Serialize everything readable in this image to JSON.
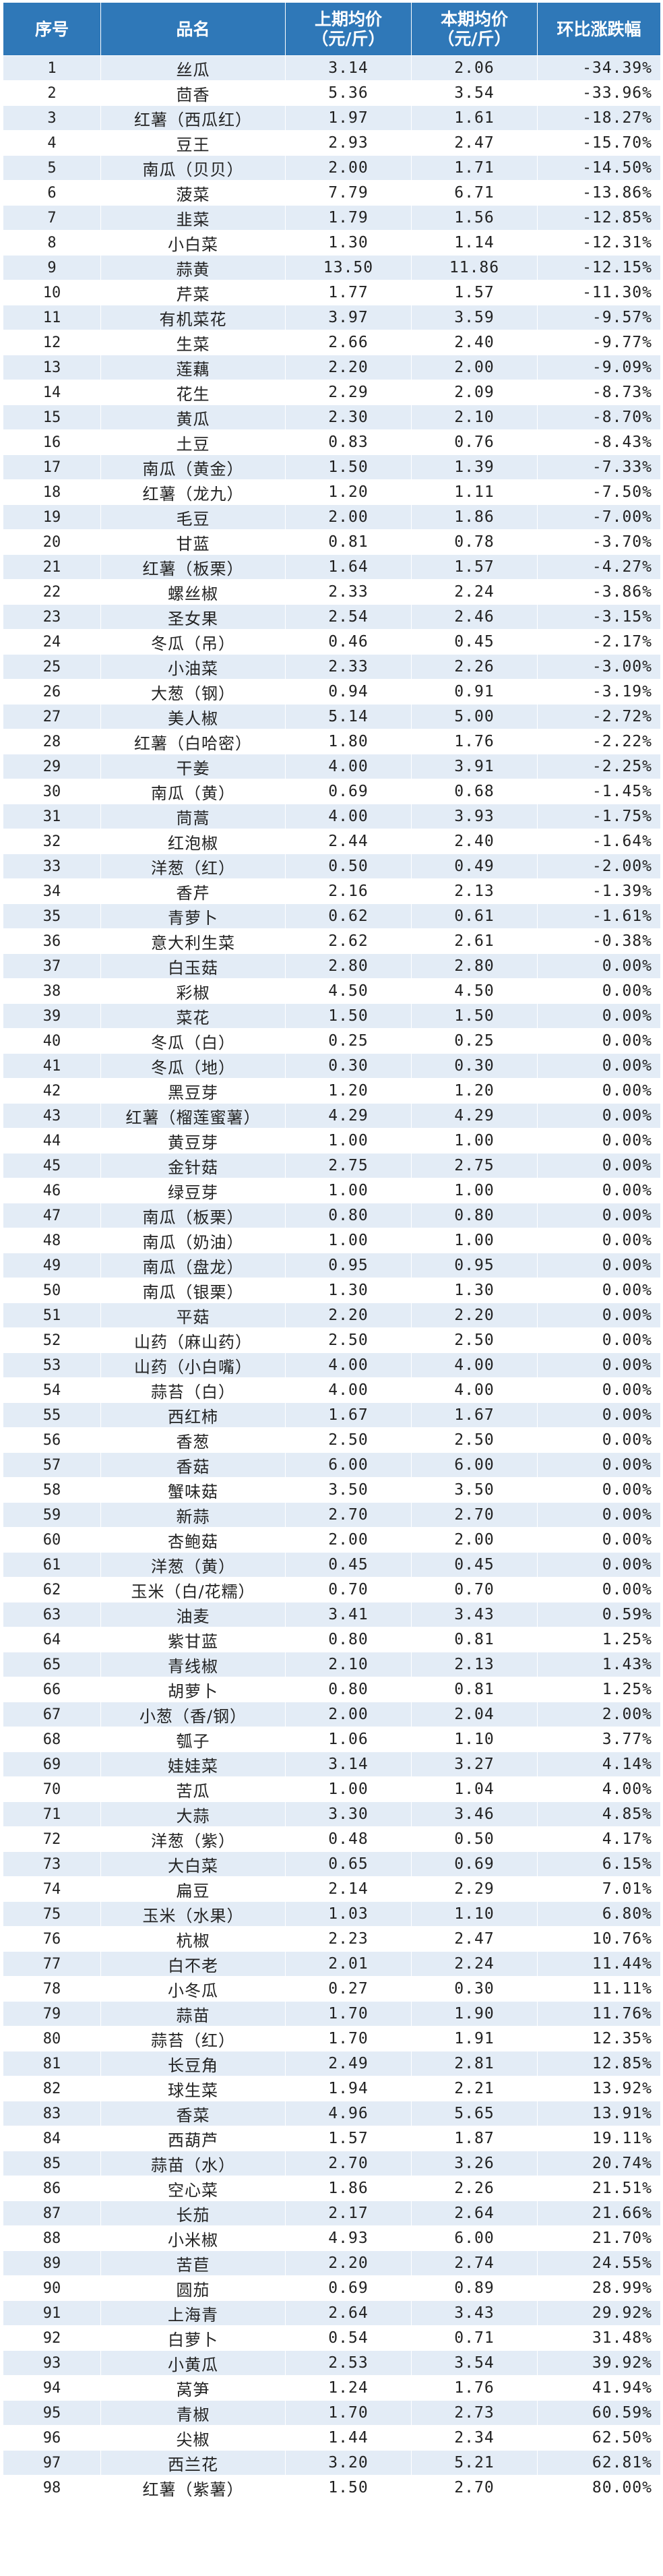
{
  "header": {
    "idx": "序号",
    "name": "品名",
    "prev": [
      "上期均价",
      "（元/斤）"
    ],
    "curr": [
      "本期均价",
      "（元/斤）"
    ],
    "change": "环比涨跌幅"
  },
  "rows": [
    [
      "1",
      "丝瓜",
      "3.14",
      "2.06",
      "-34.39%"
    ],
    [
      "2",
      "茴香",
      "5.36",
      "3.54",
      "-33.96%"
    ],
    [
      "3",
      "红薯（西瓜红）",
      "1.97",
      "1.61",
      "-18.27%"
    ],
    [
      "4",
      "豆王",
      "2.93",
      "2.47",
      "-15.70%"
    ],
    [
      "5",
      "南瓜（贝贝）",
      "2.00",
      "1.71",
      "-14.50%"
    ],
    [
      "6",
      "菠菜",
      "7.79",
      "6.71",
      "-13.86%"
    ],
    [
      "7",
      "韭菜",
      "1.79",
      "1.56",
      "-12.85%"
    ],
    [
      "8",
      "小白菜",
      "1.30",
      "1.14",
      "-12.31%"
    ],
    [
      "9",
      "蒜黄",
      "13.50",
      "11.86",
      "-12.15%"
    ],
    [
      "10",
      "芹菜",
      "1.77",
      "1.57",
      "-11.30%"
    ],
    [
      "11",
      "有机菜花",
      "3.97",
      "3.59",
      "-9.57%"
    ],
    [
      "12",
      "生菜",
      "2.66",
      "2.40",
      "-9.77%"
    ],
    [
      "13",
      "莲藕",
      "2.20",
      "2.00",
      "-9.09%"
    ],
    [
      "14",
      "花生",
      "2.29",
      "2.09",
      "-8.73%"
    ],
    [
      "15",
      "黄瓜",
      "2.30",
      "2.10",
      "-8.70%"
    ],
    [
      "16",
      "土豆",
      "0.83",
      "0.76",
      "-8.43%"
    ],
    [
      "17",
      "南瓜（黄金）",
      "1.50",
      "1.39",
      "-7.33%"
    ],
    [
      "18",
      "红薯（龙九）",
      "1.20",
      "1.11",
      "-7.50%"
    ],
    [
      "19",
      "毛豆",
      "2.00",
      "1.86",
      "-7.00%"
    ],
    [
      "20",
      "甘蓝",
      "0.81",
      "0.78",
      "-3.70%"
    ],
    [
      "21",
      "红薯（板栗）",
      "1.64",
      "1.57",
      "-4.27%"
    ],
    [
      "22",
      "螺丝椒",
      "2.33",
      "2.24",
      "-3.86%"
    ],
    [
      "23",
      "圣女果",
      "2.54",
      "2.46",
      "-3.15%"
    ],
    [
      "24",
      "冬瓜（吊）",
      "0.46",
      "0.45",
      "-2.17%"
    ],
    [
      "25",
      "小油菜",
      "2.33",
      "2.26",
      "-3.00%"
    ],
    [
      "26",
      "大葱（钢）",
      "0.94",
      "0.91",
      "-3.19%"
    ],
    [
      "27",
      "美人椒",
      "5.14",
      "5.00",
      "-2.72%"
    ],
    [
      "28",
      "红薯（白哈密）",
      "1.80",
      "1.76",
      "-2.22%"
    ],
    [
      "29",
      "干姜",
      "4.00",
      "3.91",
      "-2.25%"
    ],
    [
      "30",
      "南瓜（黄）",
      "0.69",
      "0.68",
      "-1.45%"
    ],
    [
      "31",
      "茼蒿",
      "4.00",
      "3.93",
      "-1.75%"
    ],
    [
      "32",
      "红泡椒",
      "2.44",
      "2.40",
      "-1.64%"
    ],
    [
      "33",
      "洋葱（红）",
      "0.50",
      "0.49",
      "-2.00%"
    ],
    [
      "34",
      "香芹",
      "2.16",
      "2.13",
      "-1.39%"
    ],
    [
      "35",
      "青萝卜",
      "0.62",
      "0.61",
      "-1.61%"
    ],
    [
      "36",
      "意大利生菜",
      "2.62",
      "2.61",
      "-0.38%"
    ],
    [
      "37",
      "白玉菇",
      "2.80",
      "2.80",
      "0.00%"
    ],
    [
      "38",
      "彩椒",
      "4.50",
      "4.50",
      "0.00%"
    ],
    [
      "39",
      "菜花",
      "1.50",
      "1.50",
      "0.00%"
    ],
    [
      "40",
      "冬瓜（白）",
      "0.25",
      "0.25",
      "0.00%"
    ],
    [
      "41",
      "冬瓜（地）",
      "0.30",
      "0.30",
      "0.00%"
    ],
    [
      "42",
      "黑豆芽",
      "1.20",
      "1.20",
      "0.00%"
    ],
    [
      "43",
      "红薯（榴莲蜜薯）",
      "4.29",
      "4.29",
      "0.00%"
    ],
    [
      "44",
      "黄豆芽",
      "1.00",
      "1.00",
      "0.00%"
    ],
    [
      "45",
      "金针菇",
      "2.75",
      "2.75",
      "0.00%"
    ],
    [
      "46",
      "绿豆芽",
      "1.00",
      "1.00",
      "0.00%"
    ],
    [
      "47",
      "南瓜（板栗）",
      "0.80",
      "0.80",
      "0.00%"
    ],
    [
      "48",
      "南瓜（奶油）",
      "1.00",
      "1.00",
      "0.00%"
    ],
    [
      "49",
      "南瓜（盘龙）",
      "0.95",
      "0.95",
      "0.00%"
    ],
    [
      "50",
      "南瓜（银栗）",
      "1.30",
      "1.30",
      "0.00%"
    ],
    [
      "51",
      "平菇",
      "2.20",
      "2.20",
      "0.00%"
    ],
    [
      "52",
      "山药（麻山药）",
      "2.50",
      "2.50",
      "0.00%"
    ],
    [
      "53",
      "山药（小白嘴）",
      "4.00",
      "4.00",
      "0.00%"
    ],
    [
      "54",
      "蒜苔（白）",
      "4.00",
      "4.00",
      "0.00%"
    ],
    [
      "55",
      "西红柿",
      "1.67",
      "1.67",
      "0.00%"
    ],
    [
      "56",
      "香葱",
      "2.50",
      "2.50",
      "0.00%"
    ],
    [
      "57",
      "香菇",
      "6.00",
      "6.00",
      "0.00%"
    ],
    [
      "58",
      "蟹味菇",
      "3.50",
      "3.50",
      "0.00%"
    ],
    [
      "59",
      "新蒜",
      "2.70",
      "2.70",
      "0.00%"
    ],
    [
      "60",
      "杏鲍菇",
      "2.00",
      "2.00",
      "0.00%"
    ],
    [
      "61",
      "洋葱（黄）",
      "0.45",
      "0.45",
      "0.00%"
    ],
    [
      "62",
      "玉米（白/花糯）",
      "0.70",
      "0.70",
      "0.00%"
    ],
    [
      "63",
      "油麦",
      "3.41",
      "3.43",
      "0.59%"
    ],
    [
      "64",
      "紫甘蓝",
      "0.80",
      "0.81",
      "1.25%"
    ],
    [
      "65",
      "青线椒",
      "2.10",
      "2.13",
      "1.43%"
    ],
    [
      "66",
      "胡萝卜",
      "0.80",
      "0.81",
      "1.25%"
    ],
    [
      "67",
      "小葱（香/钢）",
      "2.00",
      "2.04",
      "2.00%"
    ],
    [
      "68",
      "瓠子",
      "1.06",
      "1.10",
      "3.77%"
    ],
    [
      "69",
      "娃娃菜",
      "3.14",
      "3.27",
      "4.14%"
    ],
    [
      "70",
      "苦瓜",
      "1.00",
      "1.04",
      "4.00%"
    ],
    [
      "71",
      "大蒜",
      "3.30",
      "3.46",
      "4.85%"
    ],
    [
      "72",
      "洋葱（紫）",
      "0.48",
      "0.50",
      "4.17%"
    ],
    [
      "73",
      "大白菜",
      "0.65",
      "0.69",
      "6.15%"
    ],
    [
      "74",
      "扁豆",
      "2.14",
      "2.29",
      "7.01%"
    ],
    [
      "75",
      "玉米（水果）",
      "1.03",
      "1.10",
      "6.80%"
    ],
    [
      "76",
      "杭椒",
      "2.23",
      "2.47",
      "10.76%"
    ],
    [
      "77",
      "白不老",
      "2.01",
      "2.24",
      "11.44%"
    ],
    [
      "78",
      "小冬瓜",
      "0.27",
      "0.30",
      "11.11%"
    ],
    [
      "79",
      "蒜苗",
      "1.70",
      "1.90",
      "11.76%"
    ],
    [
      "80",
      "蒜苔（红）",
      "1.70",
      "1.91",
      "12.35%"
    ],
    [
      "81",
      "长豆角",
      "2.49",
      "2.81",
      "12.85%"
    ],
    [
      "82",
      "球生菜",
      "1.94",
      "2.21",
      "13.92%"
    ],
    [
      "83",
      "香菜",
      "4.96",
      "5.65",
      "13.91%"
    ],
    [
      "84",
      "西葫芦",
      "1.57",
      "1.87",
      "19.11%"
    ],
    [
      "85",
      "蒜苗（水）",
      "2.70",
      "3.26",
      "20.74%"
    ],
    [
      "86",
      "空心菜",
      "1.86",
      "2.26",
      "21.51%"
    ],
    [
      "87",
      "长茄",
      "2.17",
      "2.64",
      "21.66%"
    ],
    [
      "88",
      "小米椒",
      "4.93",
      "6.00",
      "21.70%"
    ],
    [
      "89",
      "苦苣",
      "2.20",
      "2.74",
      "24.55%"
    ],
    [
      "90",
      "圆茄",
      "0.69",
      "0.89",
      "28.99%"
    ],
    [
      "91",
      "上海青",
      "2.64",
      "3.43",
      "29.92%"
    ],
    [
      "92",
      "白萝卜",
      "0.54",
      "0.71",
      "31.48%"
    ],
    [
      "93",
      "小黄瓜",
      "2.53",
      "3.54",
      "39.92%"
    ],
    [
      "94",
      "莴笋",
      "1.24",
      "1.76",
      "41.94%"
    ],
    [
      "95",
      "青椒",
      "1.70",
      "2.73",
      "60.59%"
    ],
    [
      "96",
      "尖椒",
      "1.44",
      "2.34",
      "62.50%"
    ],
    [
      "97",
      "西兰花",
      "3.20",
      "5.21",
      "62.81%"
    ],
    [
      "98",
      "红薯（紫薯）",
      "1.50",
      "2.70",
      "80.00%"
    ]
  ]
}
